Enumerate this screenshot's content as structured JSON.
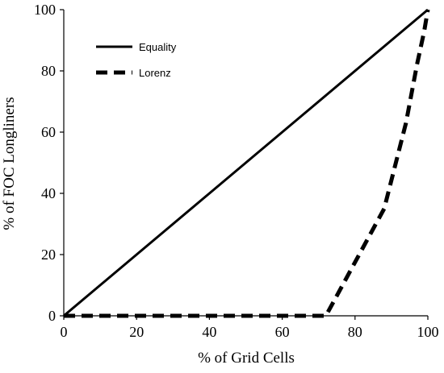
{
  "chart_data": {
    "type": "line",
    "title": "",
    "xlabel": "% of Grid Cells",
    "ylabel": "% of FOC Longliners",
    "xlim": [
      0,
      100
    ],
    "ylim": [
      0,
      100
    ],
    "x_ticks": [
      0,
      20,
      40,
      60,
      80,
      100
    ],
    "y_ticks": [
      0,
      20,
      40,
      60,
      80,
      100
    ],
    "grid": false,
    "legend_position": "top-left",
    "series": [
      {
        "name": "Equality",
        "style": "solid",
        "color": "#000000",
        "x": [
          0,
          100
        ],
        "y": [
          0,
          100
        ]
      },
      {
        "name": "Lorenz",
        "style": "dashed",
        "color": "#000000",
        "x": [
          0,
          72,
          88,
          94,
          97,
          99,
          100
        ],
        "y": [
          0,
          0,
          35,
          63,
          82,
          93,
          100
        ]
      }
    ]
  }
}
